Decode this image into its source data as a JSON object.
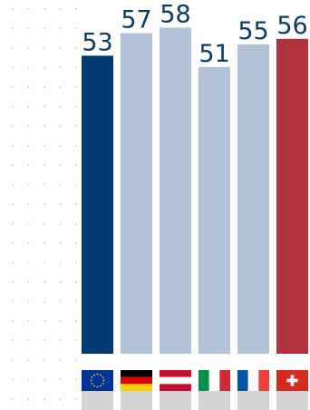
{
  "chart_data": {
    "type": "bar",
    "categories": [
      "EU",
      "Germany",
      "Austria",
      "Italy",
      "France",
      "Switzerland"
    ],
    "values": [
      53,
      57,
      58,
      51,
      55,
      56
    ],
    "value_labels": [
      "53",
      "57",
      "58",
      "51",
      "55",
      "56"
    ],
    "ylim": [
      0,
      60
    ],
    "grid": "dotted",
    "legend": "none",
    "colors": {
      "highlight_first": "#003a70",
      "others": "#b3c3d7",
      "highlight_last": "#b0333e",
      "label": "#0d3b66",
      "base_strip": "#d4d4d4",
      "grid_dot": "#d0d4db"
    },
    "bar_fill_role": [
      "highlight_first",
      "others",
      "others",
      "others",
      "others",
      "highlight_last"
    ],
    "flags": [
      "eu-flag-icon",
      "germany-flag-icon",
      "austria-flag-icon",
      "italy-flag-icon",
      "france-flag-icon",
      "switzerland-flag-icon"
    ]
  }
}
